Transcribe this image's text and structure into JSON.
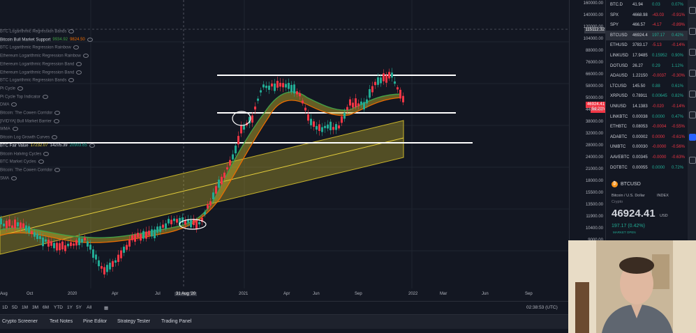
{
  "indicators": [
    {
      "label": "BTC Logarithmic Regression Bands",
      "values": []
    },
    {
      "label": "Bitcoin Bull Market Support",
      "values": [
        "9934.92",
        "9824.50"
      ],
      "active": true
    },
    {
      "label": "BTC Logarithmic Regression Rainbow",
      "values": []
    },
    {
      "label": "Ethereum Logarithmic Regression Rainbow",
      "values": []
    },
    {
      "label": "Ethereum Logarithmic Regression Band",
      "values": []
    },
    {
      "label": "Ethereum Logarithmic Regression Band",
      "values": []
    },
    {
      "label": "BTC Logarithmic Regression Bands",
      "values": []
    },
    {
      "label": "Pi Cycle",
      "values": []
    },
    {
      "label": "Pi Cycle Top Indicator",
      "values": []
    },
    {
      "label": "DMA",
      "values": []
    },
    {
      "label": "Bitcoin: The Cowen Corridor",
      "values": []
    },
    {
      "label": "[IVIDYA] Bull Market Barrier",
      "values": []
    },
    {
      "label": "WMA",
      "values": []
    },
    {
      "label": "Bitcoin Log Growth Curves",
      "values": []
    },
    {
      "label": "BTC Fair Value",
      "values": [
        "17232.07",
        "14205.39",
        "20903.65"
      ],
      "active": true
    },
    {
      "label": "Bitcoin Halving Cycles",
      "values": []
    },
    {
      "label": "BTC Market Cycles",
      "values": []
    },
    {
      "label": "Bitcoin: The Cowen Corridor",
      "values": []
    },
    {
      "label": "SMA",
      "values": []
    }
  ],
  "price_axis": {
    "ticks": [
      "160000.00",
      "140000.00",
      "120000.00",
      "104000.00",
      "88000.00",
      "76000.00",
      "66000.00",
      "58000.00",
      "50000.00",
      "44000.00",
      "38000.00",
      "32000.00",
      "28000.00",
      "24000.00",
      "21000.00",
      "18000.00",
      "15500.00",
      "13500.00",
      "11900.00",
      "10400.00",
      "9000.00"
    ],
    "crosshair_price": "115112.32",
    "last_price": "46924.41",
    "countdown": "5d 21h"
  },
  "time_axis": {
    "labels": [
      "Aug",
      "Oct",
      "2020",
      "Apr",
      "Jul",
      "31 Aug '20",
      "2021",
      "Apr",
      "Jun",
      "Sep",
      "2022",
      "Mar",
      "Jun",
      "Sep"
    ]
  },
  "bottom_bar": {
    "ranges": [
      "1D",
      "5D",
      "1M",
      "3M",
      "6M",
      "YTD",
      "1Y",
      "5Y",
      "All"
    ],
    "clock": "02:38:53 (UTC)"
  },
  "tabs": [
    "Crypto Screener",
    "Text Notes",
    "Pine Editor",
    "Strategy Tester",
    "Trading Panel"
  ],
  "watchlist": [
    {
      "symbol": "BTC.D",
      "last": "41.94",
      "chg": "0.03",
      "pct": "0.07%",
      "dir": "up"
    },
    {
      "symbol": "SPX",
      "last": "4668.98",
      "chg": "-43.03",
      "pct": "-0.91%",
      "dir": "down"
    },
    {
      "symbol": "SPY",
      "last": "466.57",
      "chg": "-4.17",
      "pct": "-0.89%",
      "dir": "down"
    },
    {
      "symbol": "BTCUSD",
      "last": "46924.4",
      "chg": "197.17",
      "pct": "0.42%",
      "dir": "up",
      "selected": true
    },
    {
      "symbol": "ETHUSD",
      "last": "3783.17",
      "chg": "-5.13",
      "pct": "-0.14%",
      "dir": "down"
    },
    {
      "symbol": "LINKUSD",
      "last": "17.9485",
      "chg": "0.15952",
      "pct": "0.90%",
      "dir": "up"
    },
    {
      "symbol": "DOTUSD",
      "last": "26.27",
      "chg": "0.29",
      "pct": "1.12%",
      "dir": "up"
    },
    {
      "symbol": "ADAUSD",
      "last": "1.22150",
      "chg": "-0.0037",
      "pct": "-0.30%",
      "dir": "down"
    },
    {
      "symbol": "LTCUSD",
      "last": "145.50",
      "chg": "0.88",
      "pct": "0.61%",
      "dir": "up"
    },
    {
      "symbol": "XRPUSD",
      "last": "0.78911",
      "chg": "0.00645",
      "pct": "0.82%",
      "dir": "up"
    },
    {
      "symbol": "UNIUSD",
      "last": "14.1383",
      "chg": "-0.020",
      "pct": "-0.14%",
      "dir": "down"
    },
    {
      "symbol": "LINKBTC",
      "last": "0.00038",
      "chg": "0.0000",
      "pct": "0.47%",
      "dir": "up"
    },
    {
      "symbol": "ETHBTC",
      "last": "0.08053",
      "chg": "-0.0004",
      "pct": "-0.55%",
      "dir": "down"
    },
    {
      "symbol": "ADABTC",
      "last": "0.00002",
      "chg": "0.0000",
      "pct": "-0.61%",
      "dir": "down"
    },
    {
      "symbol": "UNIBTC",
      "last": "0.00030",
      "chg": "-0.0000",
      "pct": "-0.56%",
      "dir": "down"
    },
    {
      "symbol": "AAVEBTC",
      "last": "0.00345",
      "chg": "-0.0000",
      "pct": "-0.63%",
      "dir": "down"
    },
    {
      "symbol": "DOTBTC",
      "last": "0.00055",
      "chg": "0.0000",
      "pct": "0.72%",
      "dir": "up"
    }
  ],
  "details": {
    "symbol": "BTCUSD",
    "description": "Bitcoin / U.S. Dollar",
    "exchange": "INDEX",
    "category": "Crypto",
    "price": "46924.41",
    "currency": "USD",
    "change": "197.17 (0.42%)",
    "market_status": "MARKET OPEN"
  },
  "colors": {
    "background": "#131722",
    "up": "#22ab94",
    "down": "#f23645",
    "band": "#c9b42b",
    "ema_fast": "#43a047",
    "ema_slow": "#ef6c00"
  }
}
